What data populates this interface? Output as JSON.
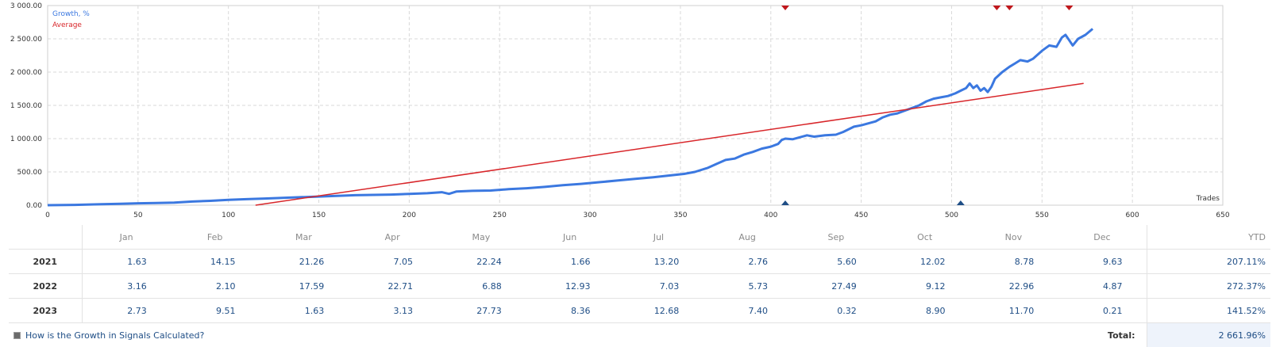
{
  "chart_data": {
    "type": "line",
    "xlabel": "Trades",
    "xlim": [
      0,
      650
    ],
    "ylim": [
      0,
      3000
    ],
    "x_ticks": [
      "0",
      "50",
      "100",
      "150",
      "200",
      "250",
      "300",
      "350",
      "400",
      "450",
      "500",
      "550",
      "600",
      "650"
    ],
    "y_ticks": [
      "0.00",
      "500.00",
      "1 000.00",
      "1 500.00",
      "2 000.00",
      "2 500.00",
      "3 000.00"
    ],
    "grid": true,
    "legend_placement": "top-left",
    "series": [
      {
        "name": "Growth, %",
        "color": "#3b78e0",
        "points": [
          [
            0,
            0
          ],
          [
            15,
            5
          ],
          [
            30,
            15
          ],
          [
            40,
            20
          ],
          [
            50,
            28
          ],
          [
            60,
            32
          ],
          [
            70,
            38
          ],
          [
            80,
            55
          ],
          [
            90,
            65
          ],
          [
            100,
            80
          ],
          [
            110,
            90
          ],
          [
            120,
            100
          ],
          [
            130,
            110
          ],
          [
            140,
            120
          ],
          [
            150,
            130
          ],
          [
            160,
            140
          ],
          [
            170,
            150
          ],
          [
            180,
            155
          ],
          [
            190,
            160
          ],
          [
            200,
            170
          ],
          [
            210,
            180
          ],
          [
            218,
            195
          ],
          [
            222,
            170
          ],
          [
            226,
            205
          ],
          [
            235,
            215
          ],
          [
            245,
            220
          ],
          [
            255,
            240
          ],
          [
            265,
            255
          ],
          [
            275,
            275
          ],
          [
            285,
            300
          ],
          [
            295,
            320
          ],
          [
            305,
            345
          ],
          [
            315,
            370
          ],
          [
            325,
            395
          ],
          [
            335,
            420
          ],
          [
            345,
            450
          ],
          [
            352,
            470
          ],
          [
            358,
            500
          ],
          [
            365,
            560
          ],
          [
            370,
            620
          ],
          [
            375,
            680
          ],
          [
            380,
            700
          ],
          [
            385,
            760
          ],
          [
            390,
            800
          ],
          [
            395,
            850
          ],
          [
            400,
            880
          ],
          [
            404,
            920
          ],
          [
            406,
            980
          ],
          [
            408,
            1000
          ],
          [
            412,
            990
          ],
          [
            416,
            1020
          ],
          [
            420,
            1050
          ],
          [
            424,
            1030
          ],
          [
            430,
            1050
          ],
          [
            436,
            1060
          ],
          [
            440,
            1100
          ],
          [
            446,
            1180
          ],
          [
            450,
            1200
          ],
          [
            454,
            1230
          ],
          [
            458,
            1260
          ],
          [
            462,
            1320
          ],
          [
            466,
            1360
          ],
          [
            470,
            1380
          ],
          [
            474,
            1420
          ],
          [
            478,
            1460
          ],
          [
            482,
            1500
          ],
          [
            486,
            1560
          ],
          [
            490,
            1600
          ],
          [
            494,
            1620
          ],
          [
            498,
            1640
          ],
          [
            502,
            1680
          ],
          [
            505,
            1720
          ],
          [
            508,
            1760
          ],
          [
            510,
            1830
          ],
          [
            512,
            1760
          ],
          [
            514,
            1800
          ],
          [
            516,
            1720
          ],
          [
            518,
            1760
          ],
          [
            520,
            1700
          ],
          [
            522,
            1780
          ],
          [
            524,
            1900
          ],
          [
            528,
            2000
          ],
          [
            532,
            2080
          ],
          [
            535,
            2130
          ],
          [
            538,
            2180
          ],
          [
            542,
            2160
          ],
          [
            545,
            2200
          ],
          [
            550,
            2320
          ],
          [
            554,
            2400
          ],
          [
            558,
            2380
          ],
          [
            561,
            2520
          ],
          [
            563,
            2560
          ],
          [
            565,
            2480
          ],
          [
            567,
            2400
          ],
          [
            570,
            2500
          ],
          [
            574,
            2560
          ],
          [
            578,
            2650
          ]
        ]
      },
      {
        "name": "Average",
        "color": "#d8262a",
        "points": [
          [
            115,
            0
          ],
          [
            573,
            1830
          ]
        ]
      }
    ],
    "markers": {
      "top_red_x": [
        408,
        525,
        532,
        565
      ],
      "bottom_blue_x": [
        408,
        505
      ]
    }
  },
  "table": {
    "headers": [
      "",
      "Jan",
      "Feb",
      "Mar",
      "Apr",
      "May",
      "Jun",
      "Jul",
      "Aug",
      "Sep",
      "Oct",
      "Nov",
      "Dec",
      "YTD"
    ],
    "rows": [
      {
        "year": "2021",
        "values": [
          "1.63",
          "14.15",
          "21.26",
          "7.05",
          "22.24",
          "1.66",
          "13.20",
          "2.76",
          "5.60",
          "12.02",
          "8.78",
          "9.63"
        ],
        "ytd": "207.11%"
      },
      {
        "year": "2022",
        "values": [
          "3.16",
          "2.10",
          "17.59",
          "22.71",
          "6.88",
          "12.93",
          "7.03",
          "5.73",
          "27.49",
          "9.12",
          "22.96",
          "4.87"
        ],
        "ytd": "272.37%"
      },
      {
        "year": "2023",
        "values": [
          "2.73",
          "9.51",
          "1.63",
          "3.13",
          "27.73",
          "8.36",
          "12.68",
          "7.40",
          "0.32",
          "8.90",
          "11.70",
          "0.21"
        ],
        "ytd": "141.52%"
      }
    ],
    "help_link": "How is the Growth in Signals Calculated?",
    "total_label": "Total:",
    "total_value": "2 661.96%"
  }
}
